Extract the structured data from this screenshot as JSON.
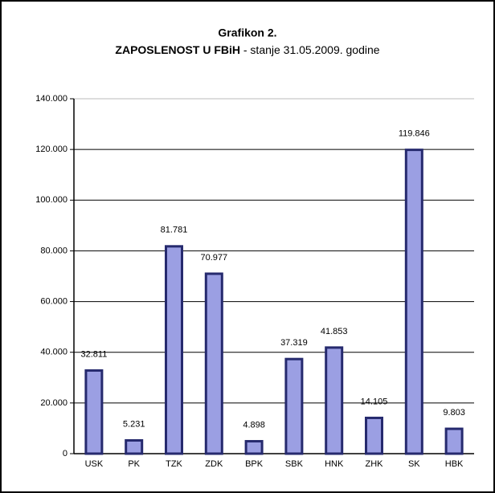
{
  "chart_data": {
    "type": "bar",
    "title": "Grafikon 2.",
    "subtitle_bold": "ZAPOSLENOST U FBiH",
    "subtitle": " - stanje 31.05.2009. godine",
    "categories": [
      "USK",
      "PK",
      "TZK",
      "ZDK",
      "BPK",
      "SBK",
      "HNK",
      "ZHK",
      "SK",
      "HBK"
    ],
    "values": [
      32811,
      5231,
      81781,
      70977,
      4898,
      37319,
      41853,
      14105,
      119846,
      9803
    ],
    "value_labels": [
      "32.811",
      "5.231",
      "81.781",
      "70.977",
      "4.898",
      "37.319",
      "41.853",
      "14.105",
      "119.846",
      "9.803"
    ],
    "color": "#9b9fe3",
    "ylim": [
      0,
      140000
    ],
    "yticks": [
      0,
      {
        "value": 20000,
        "label": "20.000"
      },
      {
        "value": 40000,
        "label": "40.000"
      },
      {
        "value": 60000,
        "label": "60.000"
      },
      {
        "value": 80000,
        "label": "80.000"
      },
      {
        "value": 100000,
        "label": "100.000"
      },
      {
        "value": 120000,
        "label": "120.000"
      },
      {
        "value": 140000,
        "label": "140.000"
      }
    ],
    "grid": true
  }
}
